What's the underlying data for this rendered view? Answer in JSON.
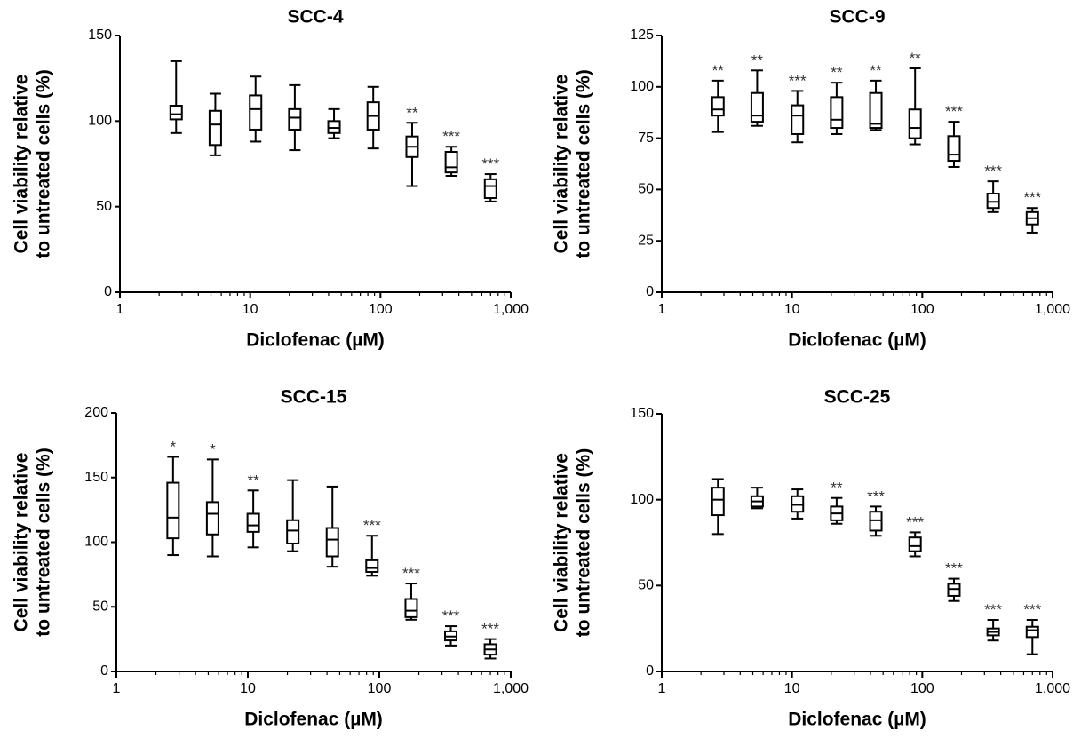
{
  "chart_data": [
    {
      "type": "box",
      "title": "SCC-4",
      "xlabel": "Diclofenac (µM)",
      "ylabel_lines": [
        "Cell viability relative",
        "to untreated cells (%)"
      ],
      "xscale": "log",
      "xlim": [
        1,
        1000
      ],
      "xticks": [
        1,
        10,
        100,
        1000
      ],
      "xtick_labels": [
        "1",
        "10",
        "100",
        "1,000"
      ],
      "ylim": [
        0,
        150
      ],
      "yticks": [
        0,
        50,
        100,
        150
      ],
      "boxes": [
        {
          "x": 2.7,
          "min": 93,
          "q1": 101,
          "median": 104,
          "q3": 109,
          "max": 135,
          "sig": ""
        },
        {
          "x": 5.4,
          "min": 80,
          "q1": 86,
          "median": 98,
          "q3": 106,
          "max": 116,
          "sig": ""
        },
        {
          "x": 11,
          "min": 88,
          "q1": 95,
          "median": 107,
          "q3": 115,
          "max": 126,
          "sig": ""
        },
        {
          "x": 22,
          "min": 83,
          "q1": 95,
          "median": 102,
          "q3": 107,
          "max": 121,
          "sig": ""
        },
        {
          "x": 44,
          "min": 90,
          "q1": 93,
          "median": 96,
          "q3": 100,
          "max": 107,
          "sig": ""
        },
        {
          "x": 88,
          "min": 84,
          "q1": 95,
          "median": 103,
          "q3": 111,
          "max": 120,
          "sig": ""
        },
        {
          "x": 175,
          "min": 62,
          "q1": 79,
          "median": 85,
          "q3": 91,
          "max": 99,
          "sig": "**"
        },
        {
          "x": 350,
          "min": 68,
          "q1": 70,
          "median": 73,
          "q3": 82,
          "max": 85,
          "sig": "***"
        },
        {
          "x": 700,
          "min": 53,
          "q1": 55,
          "median": 62,
          "q3": 66,
          "max": 69,
          "sig": "***"
        }
      ]
    },
    {
      "type": "box",
      "title": "SCC-9",
      "xlabel": "Diclofenac (µM)",
      "ylabel_lines": [
        "Cell viability relative",
        "to untreated cells (%)"
      ],
      "xscale": "log",
      "xlim": [
        1,
        1000
      ],
      "xticks": [
        1,
        10,
        100,
        1000
      ],
      "xtick_labels": [
        "1",
        "10",
        "100",
        "1,000"
      ],
      "ylim": [
        0,
        125
      ],
      "yticks": [
        0,
        25,
        50,
        75,
        100,
        125
      ],
      "boxes": [
        {
          "x": 2.7,
          "min": 78,
          "q1": 86,
          "median": 89,
          "q3": 95,
          "max": 103,
          "sig": "**"
        },
        {
          "x": 5.4,
          "min": 81,
          "q1": 83,
          "median": 86,
          "q3": 97,
          "max": 108,
          "sig": "**"
        },
        {
          "x": 11,
          "min": 73,
          "q1": 77,
          "median": 86,
          "q3": 91,
          "max": 98,
          "sig": "***"
        },
        {
          "x": 22,
          "min": 77,
          "q1": 80,
          "median": 84,
          "q3": 95,
          "max": 102,
          "sig": "**"
        },
        {
          "x": 44,
          "min": 79,
          "q1": 80,
          "median": 82,
          "q3": 97,
          "max": 103,
          "sig": "**"
        },
        {
          "x": 88,
          "min": 72,
          "q1": 75,
          "median": 80,
          "q3": 89,
          "max": 109,
          "sig": "**"
        },
        {
          "x": 175,
          "min": 61,
          "q1": 64,
          "median": 67,
          "q3": 76,
          "max": 83,
          "sig": "***"
        },
        {
          "x": 350,
          "min": 39,
          "q1": 41,
          "median": 44,
          "q3": 48,
          "max": 54,
          "sig": "***"
        },
        {
          "x": 700,
          "min": 29,
          "q1": 33,
          "median": 36,
          "q3": 39,
          "max": 41,
          "sig": "***"
        }
      ]
    },
    {
      "type": "box",
      "title": "SCC-15",
      "xlabel": "Diclofenac (µM)",
      "ylabel_lines": [
        "Cell viability relative",
        "to untreated cells (%)"
      ],
      "xscale": "log",
      "xlim": [
        1,
        1000
      ],
      "xticks": [
        1,
        10,
        100,
        1000
      ],
      "xtick_labels": [
        "1",
        "10",
        "100",
        "1,000"
      ],
      "ylim": [
        0,
        200
      ],
      "yticks": [
        0,
        50,
        100,
        150,
        200
      ],
      "boxes": [
        {
          "x": 2.7,
          "min": 90,
          "q1": 103,
          "median": 119,
          "q3": 146,
          "max": 166,
          "sig": "*"
        },
        {
          "x": 5.4,
          "min": 89,
          "q1": 106,
          "median": 122,
          "q3": 131,
          "max": 164,
          "sig": "*"
        },
        {
          "x": 11,
          "min": 96,
          "q1": 108,
          "median": 113,
          "q3": 122,
          "max": 140,
          "sig": "**"
        },
        {
          "x": 22,
          "min": 93,
          "q1": 99,
          "median": 109,
          "q3": 117,
          "max": 148,
          "sig": ""
        },
        {
          "x": 44,
          "min": 81,
          "q1": 89,
          "median": 102,
          "q3": 111,
          "max": 143,
          "sig": ""
        },
        {
          "x": 88,
          "min": 74,
          "q1": 77,
          "median": 80,
          "q3": 86,
          "max": 105,
          "sig": "***"
        },
        {
          "x": 175,
          "min": 40,
          "q1": 42,
          "median": 47,
          "q3": 56,
          "max": 68,
          "sig": "***"
        },
        {
          "x": 350,
          "min": 20,
          "q1": 24,
          "median": 27,
          "q3": 31,
          "max": 35,
          "sig": "***"
        },
        {
          "x": 700,
          "min": 10,
          "q1": 13,
          "median": 17,
          "q3": 21,
          "max": 25,
          "sig": "***"
        }
      ]
    },
    {
      "type": "box",
      "title": "SCC-25",
      "xlabel": "Diclofenac (µM)",
      "ylabel_lines": [
        "Cell viability relative",
        "to untreated cells (%)"
      ],
      "xscale": "log",
      "xlim": [
        1,
        1000
      ],
      "xticks": [
        1,
        10,
        100,
        1000
      ],
      "xtick_labels": [
        "1",
        "10",
        "100",
        "1,000"
      ],
      "ylim": [
        0,
        150
      ],
      "yticks": [
        0,
        50,
        100,
        150
      ],
      "boxes": [
        {
          "x": 2.7,
          "min": 80,
          "q1": 91,
          "median": 100,
          "q3": 107,
          "max": 112,
          "sig": ""
        },
        {
          "x": 5.4,
          "min": 95,
          "q1": 96,
          "median": 99,
          "q3": 102,
          "max": 107,
          "sig": ""
        },
        {
          "x": 11,
          "min": 89,
          "q1": 93,
          "median": 97,
          "q3": 102,
          "max": 106,
          "sig": ""
        },
        {
          "x": 22,
          "min": 86,
          "q1": 88,
          "median": 92,
          "q3": 96,
          "max": 101,
          "sig": "**"
        },
        {
          "x": 44,
          "min": 79,
          "q1": 82,
          "median": 88,
          "q3": 93,
          "max": 96,
          "sig": "***"
        },
        {
          "x": 88,
          "min": 67,
          "q1": 70,
          "median": 73,
          "q3": 78,
          "max": 81,
          "sig": "***"
        },
        {
          "x": 175,
          "min": 41,
          "q1": 44,
          "median": 48,
          "q3": 51,
          "max": 54,
          "sig": "***"
        },
        {
          "x": 350,
          "min": 18,
          "q1": 21,
          "median": 23,
          "q3": 25,
          "max": 30,
          "sig": "***"
        },
        {
          "x": 700,
          "min": 10,
          "q1": 20,
          "median": 24,
          "q3": 26,
          "max": 30,
          "sig": "***"
        }
      ]
    }
  ]
}
